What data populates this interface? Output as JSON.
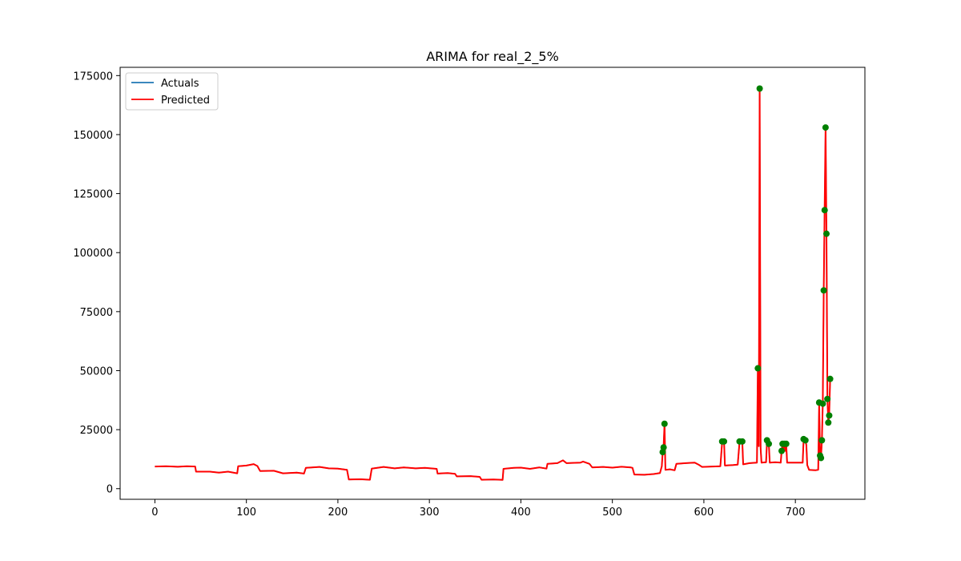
{
  "chart_data": {
    "type": "line",
    "title": "ARIMA for real_2_5%",
    "xlabel": "",
    "ylabel": "",
    "xlim": [
      -38,
      776
    ],
    "ylim": [
      -4500,
      178500
    ],
    "xticks": [
      0,
      100,
      200,
      300,
      400,
      500,
      600,
      700
    ],
    "yticks": [
      0,
      25000,
      50000,
      75000,
      100000,
      125000,
      150000,
      175000
    ],
    "grid": false,
    "legend": {
      "position": "top-left",
      "entries": [
        "Actuals",
        "Predicted"
      ]
    },
    "colors": {
      "actuals": "#1f77b4",
      "predicted": "#ff0000",
      "markers": "#008000"
    },
    "segments": [
      [
        0,
        9400
      ],
      [
        12,
        9500
      ],
      [
        25,
        9300
      ],
      [
        35,
        9500
      ],
      [
        44,
        9400
      ],
      [
        45,
        7200
      ],
      [
        60,
        7200
      ],
      [
        70,
        6800
      ],
      [
        80,
        7200
      ],
      [
        90,
        6500
      ],
      [
        91,
        9500
      ],
      [
        100,
        9800
      ],
      [
        108,
        10400
      ],
      [
        112,
        9600
      ],
      [
        115,
        7500
      ],
      [
        130,
        7600
      ],
      [
        140,
        6500
      ],
      [
        155,
        6800
      ],
      [
        163,
        6400
      ],
      [
        165,
        8800
      ],
      [
        180,
        9200
      ],
      [
        190,
        8600
      ],
      [
        200,
        8500
      ],
      [
        210,
        8000
      ],
      [
        212,
        3900
      ],
      [
        225,
        4000
      ],
      [
        235,
        3800
      ],
      [
        237,
        8500
      ],
      [
        250,
        9200
      ],
      [
        262,
        8600
      ],
      [
        272,
        9000
      ],
      [
        285,
        8600
      ],
      [
        295,
        8800
      ],
      [
        308,
        8400
      ],
      [
        309,
        6400
      ],
      [
        320,
        6600
      ],
      [
        328,
        6300
      ],
      [
        330,
        5200
      ],
      [
        345,
        5300
      ],
      [
        355,
        5000
      ],
      [
        357,
        3800
      ],
      [
        370,
        3900
      ],
      [
        380,
        3700
      ],
      [
        381,
        8400
      ],
      [
        392,
        8800
      ],
      [
        400,
        8900
      ],
      [
        410,
        8400
      ],
      [
        420,
        9000
      ],
      [
        428,
        8500
      ],
      [
        429,
        10500
      ],
      [
        440,
        10800
      ],
      [
        446,
        12000
      ],
      [
        450,
        10800
      ],
      [
        465,
        11000
      ],
      [
        468,
        11500
      ],
      [
        475,
        10500
      ],
      [
        478,
        9000
      ],
      [
        490,
        9200
      ],
      [
        500,
        8900
      ],
      [
        510,
        9300
      ],
      [
        520,
        9000
      ],
      [
        522,
        8800
      ],
      [
        524,
        6000
      ],
      [
        535,
        5900
      ],
      [
        545,
        6200
      ],
      [
        552,
        6600
      ],
      [
        554,
        9500
      ],
      [
        555,
        15500
      ],
      [
        556,
        17500
      ],
      [
        557,
        27500
      ],
      [
        558,
        8000
      ],
      [
        563,
        8200
      ],
      [
        568,
        7800
      ],
      [
        570,
        10500
      ],
      [
        580,
        10800
      ],
      [
        590,
        11000
      ],
      [
        595,
        10000
      ],
      [
        598,
        9200
      ],
      [
        610,
        9400
      ],
      [
        618,
        9500
      ],
      [
        620,
        20000
      ],
      [
        622,
        20000
      ],
      [
        623,
        9800
      ],
      [
        632,
        10000
      ],
      [
        637,
        10200
      ],
      [
        639,
        20000
      ],
      [
        642,
        20000
      ],
      [
        643,
        10300
      ],
      [
        650,
        10800
      ],
      [
        658,
        11000
      ],
      [
        659,
        51000
      ],
      [
        660,
        18000
      ],
      [
        661,
        169500
      ],
      [
        662,
        17000
      ],
      [
        663,
        11000
      ],
      [
        668,
        11200
      ],
      [
        669,
        20500
      ],
      [
        671,
        19000
      ],
      [
        672,
        11000
      ],
      [
        678,
        11200
      ],
      [
        684,
        11000
      ],
      [
        685,
        16000
      ],
      [
        686,
        19000
      ],
      [
        687,
        17000
      ],
      [
        688,
        19000
      ],
      [
        689,
        16000
      ],
      [
        690,
        19000
      ],
      [
        691,
        11000
      ],
      [
        700,
        11000
      ],
      [
        708,
        11000
      ],
      [
        709,
        21000
      ],
      [
        711,
        20500
      ],
      [
        712,
        18500
      ],
      [
        713,
        10000
      ],
      [
        715,
        8000
      ],
      [
        722,
        7800
      ],
      [
        725,
        8000
      ],
      [
        726,
        36500
      ],
      [
        727,
        14000
      ],
      [
        728,
        13000
      ],
      [
        729,
        20500
      ],
      [
        730,
        36000
      ],
      [
        731,
        84000
      ],
      [
        732,
        118000
      ],
      [
        733,
        153000
      ],
      [
        734,
        108000
      ],
      [
        735,
        38000
      ],
      [
        736,
        28000
      ],
      [
        737,
        31000
      ],
      [
        738,
        46500
      ]
    ],
    "points": [
      [
        555,
        15500
      ],
      [
        556,
        17500
      ],
      [
        557,
        27500
      ],
      [
        620,
        20000
      ],
      [
        622,
        20000
      ],
      [
        639,
        20000
      ],
      [
        642,
        20000
      ],
      [
        659,
        51000
      ],
      [
        661,
        169500
      ],
      [
        669,
        20500
      ],
      [
        671,
        19000
      ],
      [
        685,
        16000
      ],
      [
        686,
        19000
      ],
      [
        688,
        19000
      ],
      [
        690,
        19000
      ],
      [
        709,
        21000
      ],
      [
        711,
        20500
      ],
      [
        726,
        36500
      ],
      [
        727,
        14000
      ],
      [
        728,
        13000
      ],
      [
        729,
        20500
      ],
      [
        730,
        36000
      ],
      [
        731,
        84000
      ],
      [
        732,
        118000
      ],
      [
        733,
        153000
      ],
      [
        734,
        108000
      ],
      [
        735,
        38000
      ],
      [
        736,
        28000
      ],
      [
        737,
        31000
      ],
      [
        738,
        46500
      ]
    ]
  }
}
